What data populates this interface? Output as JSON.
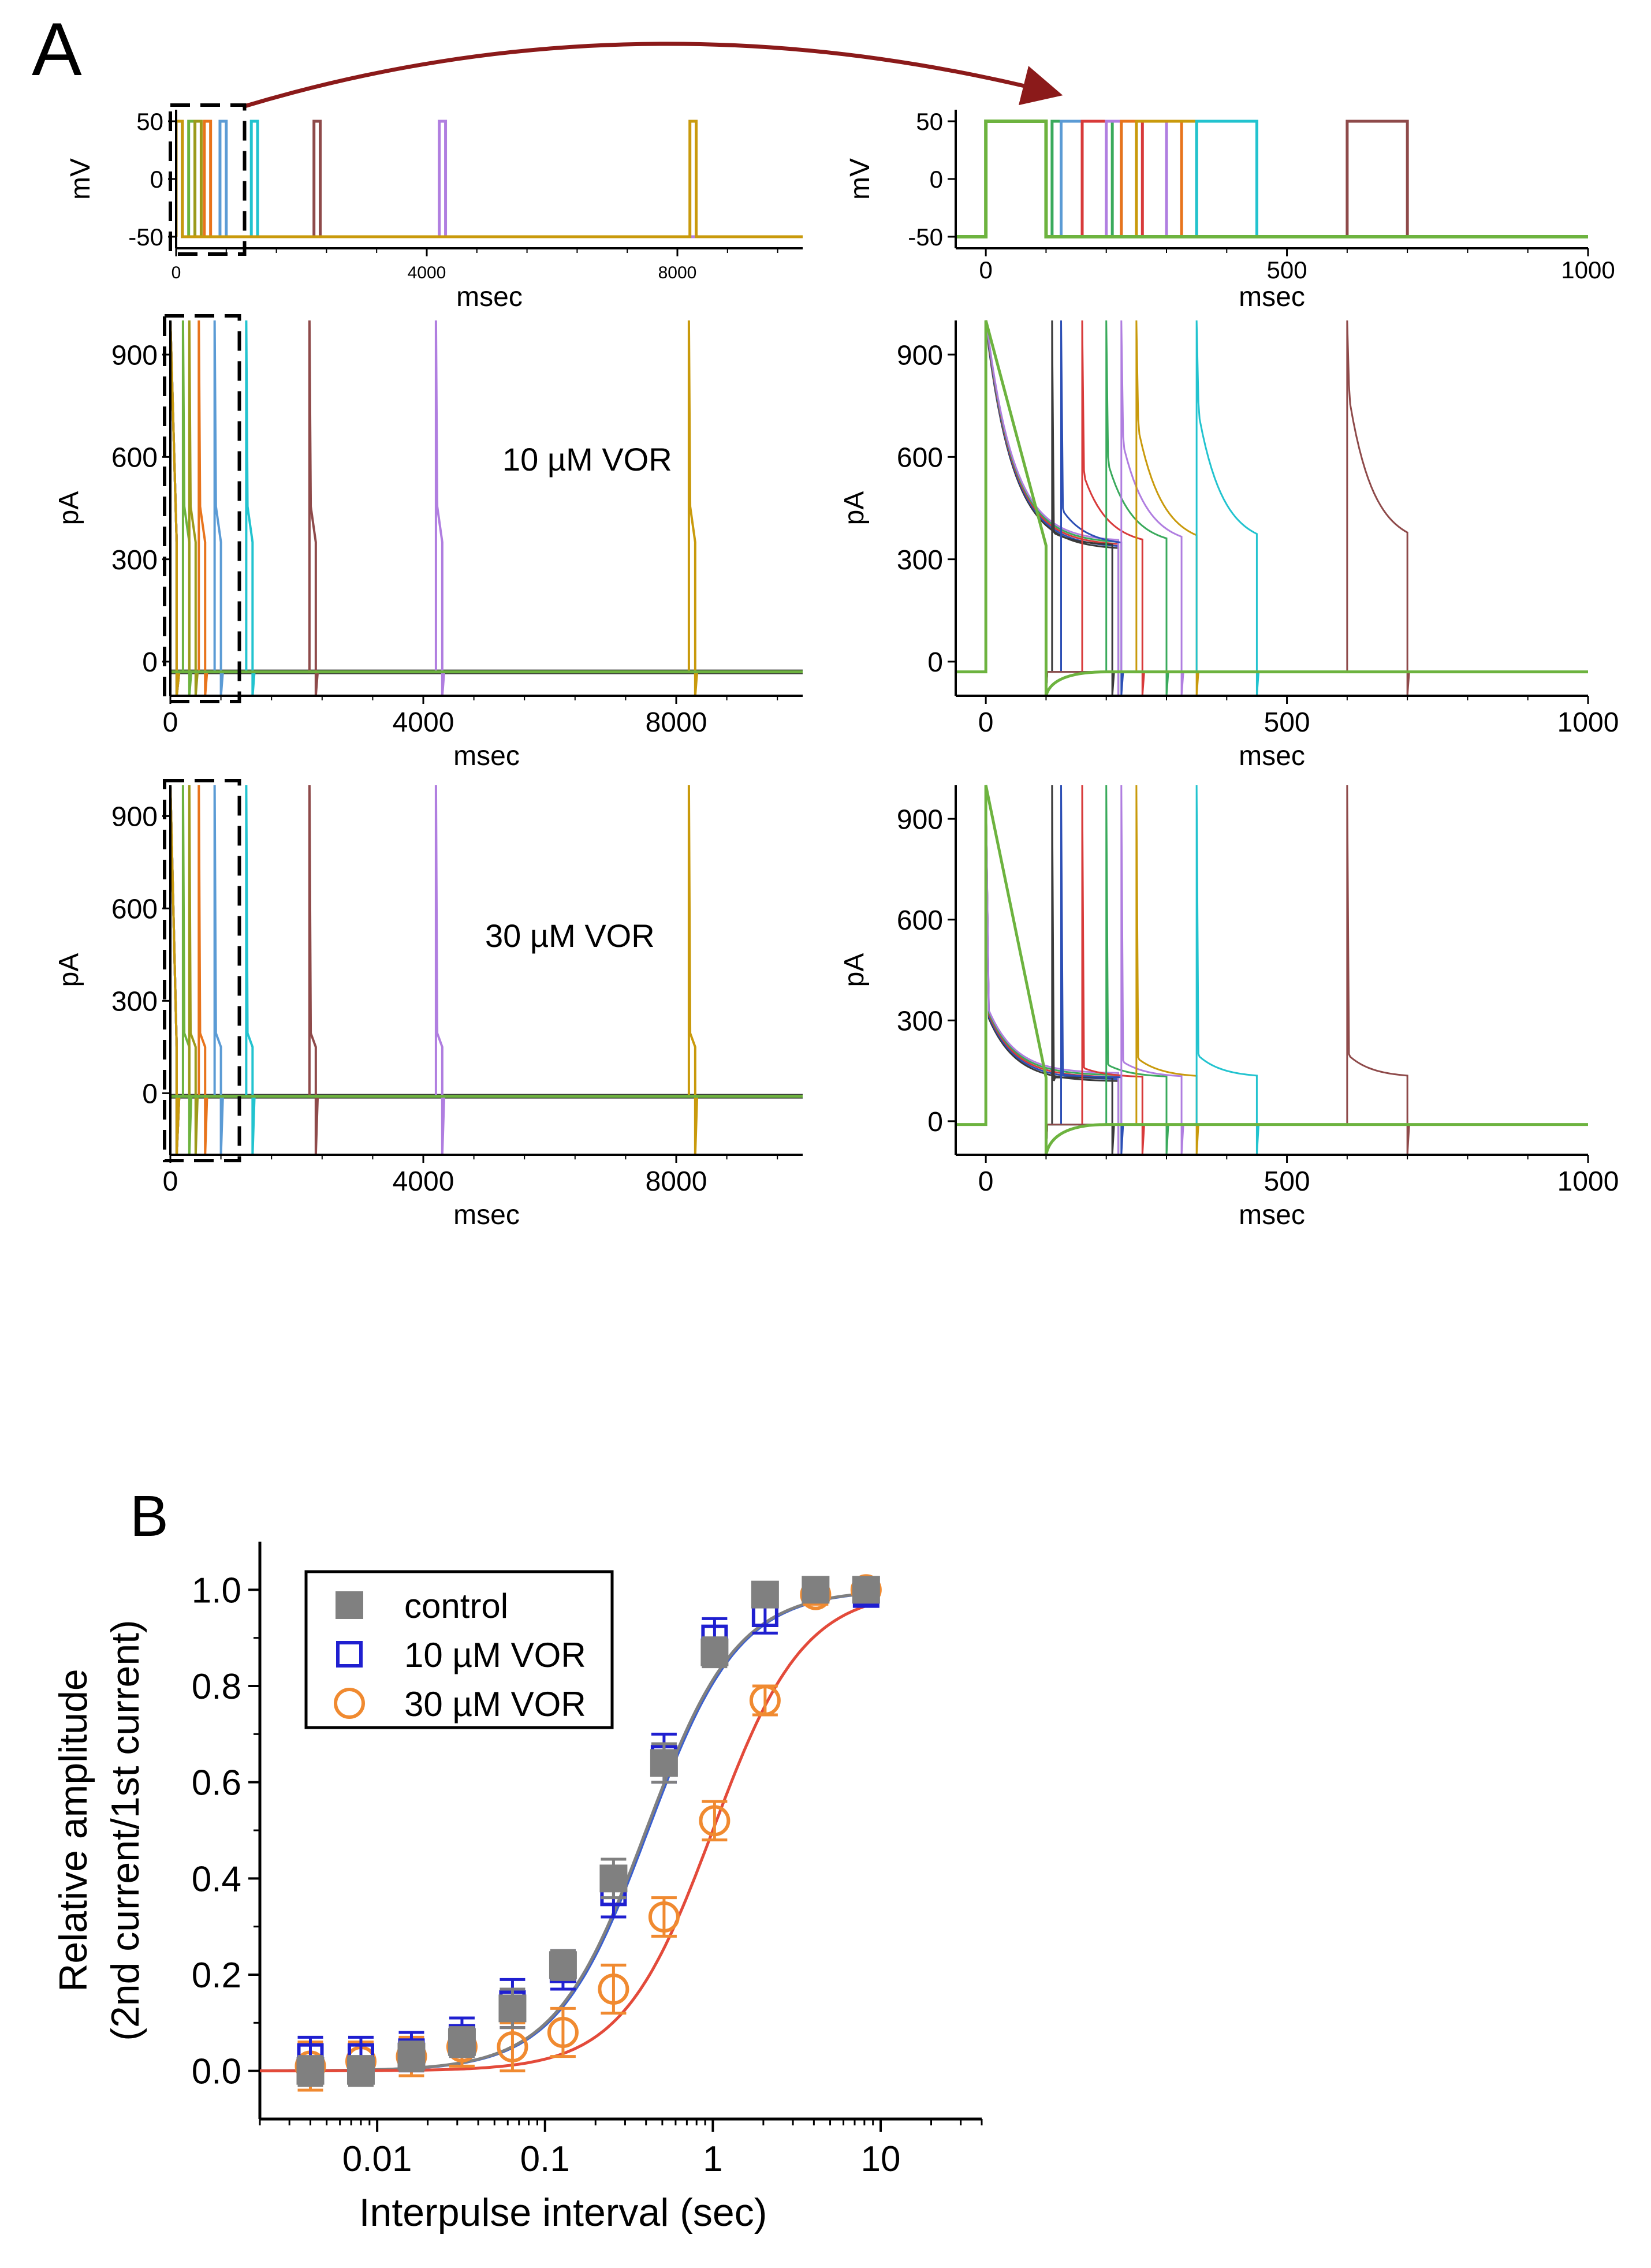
{
  "panel_labels": {
    "a": "A",
    "b": "B"
  },
  "colors": {
    "green": "#6db33f",
    "olive": "#9c9a1a",
    "orange": "#e8741c",
    "blue": "#5b9bd5",
    "cyan": "#22c3cf",
    "brown": "#8e4a4a",
    "purple": "#b07ee0",
    "gold": "#c99a0c",
    "seagreen": "#3aaa5c",
    "red": "#d83a3a",
    "darkblue": "#2c4fb5",
    "charcoal": "#3a3a3a",
    "marker_control": "#808080",
    "marker_10": "#1f1fd0",
    "marker_30": "#f08a30",
    "fit_control": "#808080",
    "fit_10": "#3a5fd0",
    "fit_30": "#e34a3a",
    "arrow": "#8b1a1a"
  },
  "panel_a": {
    "text_10uM": "10 µM VOR",
    "text_30uM": "30 µM VOR",
    "plots": [
      {
        "id": "voltage_full",
        "type": "line",
        "xlabel": "msec",
        "ylabel": "mV",
        "xlim": [
          0,
          10000
        ],
        "ylim": [
          -60,
          60
        ],
        "xticks": [
          "0",
          "4000",
          "8000"
        ],
        "yticks": [
          "50",
          "0",
          "-50"
        ],
        "baseline_mV": -50,
        "step_mV": 50,
        "pulse_width_ms": 100,
        "second_pulse_start_ms": [
          200,
          300,
          450,
          700,
          1200,
          2200,
          4200,
          8200
        ]
      },
      {
        "id": "voltage_zoom",
        "type": "line",
        "xlabel": "msec",
        "ylabel": "mV",
        "xlim": [
          -50,
          1000
        ],
        "ylim": [
          -60,
          60
        ],
        "xticks": [
          "0",
          "500",
          "1000"
        ],
        "yticks": [
          "50",
          "0",
          "-50"
        ],
        "baseline_mV": -50,
        "step_mV": 50,
        "first_pulse_ms": [
          0,
          100
        ],
        "second_pulse_start_ms": [
          110,
          125,
          160,
          200,
          225,
          250,
          350,
          600
        ]
      },
      {
        "id": "current_10uM_full",
        "type": "line",
        "xlabel": "msec",
        "ylabel": "pA",
        "xlim": [
          0,
          10000
        ],
        "ylim": [
          -100,
          1000
        ],
        "xticks": [
          "0",
          "4000",
          "8000"
        ],
        "yticks": [
          "900",
          "600",
          "300",
          "0"
        ],
        "baseline_pA": -30,
        "peak_pA": 1000,
        "plateau_pA": 350
      },
      {
        "id": "current_10uM_zoom",
        "type": "line",
        "xlabel": "msec",
        "ylabel": "pA",
        "xlim": [
          -50,
          1000
        ],
        "ylim": [
          -100,
          1000
        ],
        "xticks": [
          "0",
          "500",
          "1000"
        ],
        "yticks": [
          "900",
          "600",
          "300",
          "0"
        ],
        "baseline_pA": -30,
        "first_current": {
          "peak_pA": 1000,
          "end_pA": 340
        },
        "second_current_peak_pA": [
          380,
          450,
          560,
          600,
          660,
          710,
          760,
          810
        ]
      },
      {
        "id": "current_30uM_full",
        "type": "line",
        "xlabel": "msec",
        "ylabel": "pA",
        "xlim": [
          0,
          10000
        ],
        "ylim": [
          -200,
          1000
        ],
        "xticks": [
          "0",
          "4000",
          "8000"
        ],
        "yticks": [
          "900",
          "600",
          "300",
          "0"
        ],
        "baseline_pA": -10,
        "peak_pA": 1000,
        "plateau_pA": 150
      },
      {
        "id": "current_30uM_zoom",
        "type": "line",
        "xlabel": "msec",
        "ylabel": "pA",
        "xlim": [
          -50,
          1000
        ],
        "ylim": [
          -100,
          1000
        ],
        "xticks": [
          "0",
          "500",
          "1000"
        ],
        "yticks": [
          "900",
          "600",
          "300",
          "0"
        ],
        "baseline_pA": -10,
        "first_current": {
          "peak_pA": 340,
          "end_pA": 130
        },
        "second_current_peak_pA": [
          120,
          140,
          160,
          170,
          180,
          190,
          200,
          200
        ]
      }
    ]
  },
  "chart_data": {
    "type": "scatter",
    "title": "",
    "xlabel": "Interpulse interval (sec)",
    "ylabel_line1": "Relative amplitude",
    "ylabel_line2": "(2nd current/1st current)",
    "xscale": "log",
    "xlim": [
      0.002,
      40
    ],
    "ylim": [
      -0.1,
      1.1
    ],
    "xticks": [
      "0.01",
      "0.1",
      "1",
      "10"
    ],
    "yticks": [
      "0.0",
      "0.2",
      "0.4",
      "0.6",
      "0.8",
      "1.0"
    ],
    "legend_position": "top-left",
    "x": [
      0.004,
      0.008,
      0.016,
      0.032,
      0.064,
      0.128,
      0.256,
      0.512,
      1.024,
      2.048,
      4.096,
      8.192
    ],
    "series": [
      {
        "name": "control",
        "marker": "filled-square",
        "values": [
          0.0,
          0.0,
          0.03,
          0.06,
          0.13,
          0.22,
          0.4,
          0.64,
          0.87,
          0.99,
          1.0,
          1.0
        ],
        "errors": [
          0.03,
          0.03,
          0.03,
          0.03,
          0.04,
          0.03,
          0.04,
          0.04,
          0.03,
          0.01,
          0.01,
          0.02
        ],
        "fit": {
          "bottom": 0.0,
          "top": 1.0,
          "tau_sec": 0.4,
          "n": 1.6
        }
      },
      {
        "name": "10 µM VOR",
        "marker": "open-square",
        "values": [
          0.03,
          0.03,
          0.04,
          0.07,
          0.14,
          0.21,
          0.37,
          0.65,
          0.9,
          0.95,
          1.0,
          0.99
        ],
        "errors": [
          0.04,
          0.04,
          0.04,
          0.04,
          0.05,
          0.04,
          0.05,
          0.05,
          0.04,
          0.04,
          0.01,
          0.02
        ],
        "fit": {
          "bottom": 0.0,
          "top": 1.0,
          "tau_sec": 0.41,
          "n": 1.6
        }
      },
      {
        "name": "30 µM VOR",
        "marker": "open-circle",
        "values": [
          0.01,
          0.02,
          0.03,
          0.05,
          0.05,
          0.08,
          0.17,
          0.32,
          0.52,
          0.77,
          0.99,
          1.0
        ],
        "errors": [
          0.05,
          0.04,
          0.04,
          0.04,
          0.05,
          0.05,
          0.05,
          0.04,
          0.04,
          0.03,
          0.02,
          0.02
        ],
        "fit": {
          "bottom": 0.0,
          "top": 1.0,
          "tau_sec": 1.0,
          "n": 1.6
        }
      }
    ]
  }
}
